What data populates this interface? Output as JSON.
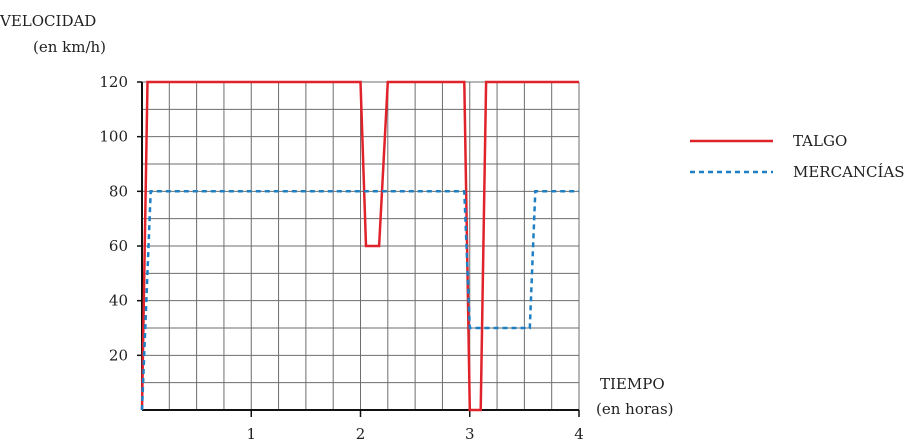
{
  "chart_data": {
    "type": "line",
    "ylabel": "VELOCIDAD",
    "ylabel_unit": "(en km/h)",
    "xlabel": "TIEMPO",
    "xlabel_unit": "(en horas)",
    "xlim": [
      0,
      4
    ],
    "ylim": [
      0,
      120
    ],
    "x_ticks": [
      1,
      2,
      3,
      4
    ],
    "y_ticks": [
      20,
      40,
      60,
      80,
      100,
      120
    ],
    "grid": true,
    "legend_position": "right",
    "series": [
      {
        "name": "TALGO",
        "color": "#e0232b",
        "style": "solid",
        "points": [
          [
            0,
            0
          ],
          [
            0.05,
            120
          ],
          [
            2.0,
            120
          ],
          [
            2.05,
            60
          ],
          [
            2.17,
            60
          ],
          [
            2.25,
            120
          ],
          [
            2.95,
            120
          ],
          [
            3.0,
            0
          ],
          [
            3.1,
            0
          ],
          [
            3.15,
            120
          ],
          [
            4.0,
            120
          ]
        ]
      },
      {
        "name": "MERCANCÍAS",
        "color": "#1f7fc4",
        "style": "dashed",
        "points": [
          [
            0,
            0
          ],
          [
            0.08,
            80
          ],
          [
            2.95,
            80
          ],
          [
            3.0,
            30
          ],
          [
            3.55,
            30
          ],
          [
            3.6,
            80
          ],
          [
            4.0,
            80
          ]
        ]
      }
    ]
  }
}
